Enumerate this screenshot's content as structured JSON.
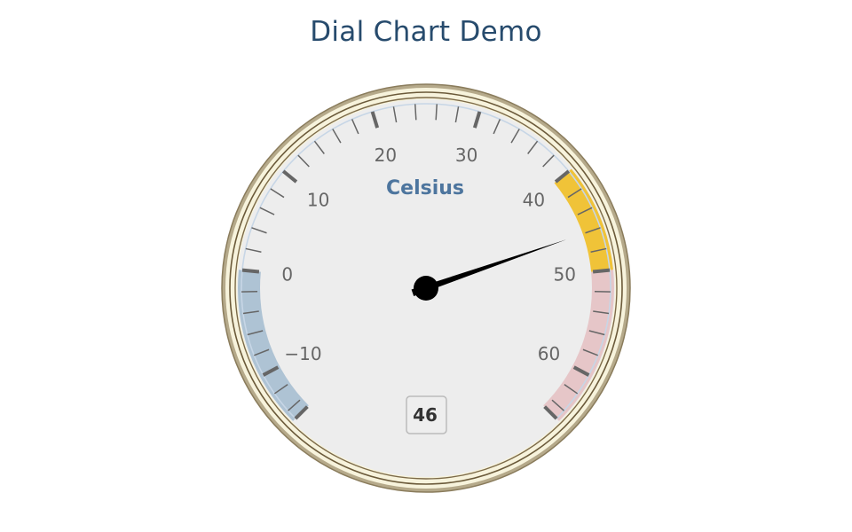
{
  "title": "Dial Chart Demo",
  "chart_data": {
    "type": "gauge",
    "title": "Dial Chart Demo",
    "unit": "Celsius",
    "value": 46,
    "value_label": "46",
    "min": -15,
    "max": 65,
    "start_angle_deg": -135,
    "end_angle_deg": 135,
    "major_ticks": [
      -15,
      -10,
      0,
      10,
      20,
      30,
      40,
      50,
      60,
      65
    ],
    "tick_labels": [
      {
        "value": -10,
        "text": "−10"
      },
      {
        "value": 0,
        "text": "0"
      },
      {
        "value": 10,
        "text": "10"
      },
      {
        "value": 20,
        "text": "20"
      },
      {
        "value": 30,
        "text": "30"
      },
      {
        "value": 40,
        "text": "40"
      },
      {
        "value": 50,
        "text": "50"
      },
      {
        "value": 60,
        "text": "60"
      }
    ],
    "minor_tick_interval": 2,
    "bands": [
      {
        "from": -15,
        "to": 0,
        "color": "#aec3d4"
      },
      {
        "from": 40,
        "to": 50,
        "color": "#f0c338"
      },
      {
        "from": 50,
        "to": 65,
        "color": "#e6c6c8"
      }
    ],
    "colors": {
      "face": "#ededed",
      "rim_outer": "#9a8c6b",
      "rim_fill": "#f7f3dc",
      "rim_dark": "#6b5a3a",
      "inner_arc": "#c7d6e6",
      "tick": "#666666",
      "needle": "#000000"
    }
  }
}
